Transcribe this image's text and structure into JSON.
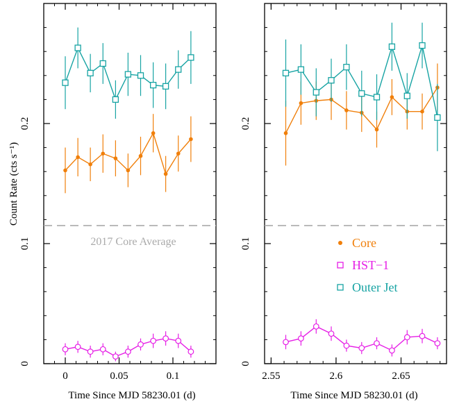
{
  "chart_data": [
    {
      "type": "line",
      "panel": "left",
      "xlabel": "Time Since MJD 58230.01 (d)",
      "ylabel": "Count Rate (cts s⁻¹)",
      "xlim": [
        -0.02,
        0.14
      ],
      "ylim": [
        0,
        0.3
      ],
      "xticks": [
        0,
        0.05,
        0.1
      ],
      "xtick_labels": [
        "0",
        "0.05",
        "0.1"
      ],
      "yticks": [
        0,
        0.1,
        0.2
      ],
      "ytick_labels": [
        "0",
        "0.1",
        "0.2"
      ],
      "reference_line": {
        "y": 0.115,
        "label": "2017 Core Average"
      },
      "series": [
        {
          "name": "Core",
          "color": "#f07f0a",
          "marker": "dot",
          "x": [
            0,
            0.0117,
            0.0233,
            0.035,
            0.0467,
            0.0583,
            0.07,
            0.0817,
            0.0933,
            0.105,
            0.1167
          ],
          "y": [
            0.161,
            0.172,
            0.166,
            0.175,
            0.171,
            0.161,
            0.173,
            0.192,
            0.158,
            0.175,
            0.187
          ],
          "err": [
            0.019,
            0.016,
            0.014,
            0.016,
            0.015,
            0.014,
            0.016,
            0.016,
            0.015,
            0.015,
            0.019
          ]
        },
        {
          "name": "HST-1",
          "color": "#e61ee6",
          "marker": "square",
          "x": [
            0,
            0.0117,
            0.0233,
            0.035,
            0.0467,
            0.0583,
            0.07,
            0.0817,
            0.0933,
            0.105,
            0.1167
          ],
          "y": [
            0.012,
            0.014,
            0.01,
            0.012,
            0.006,
            0.01,
            0.016,
            0.019,
            0.021,
            0.019,
            0.01
          ],
          "err": [
            0.005,
            0.005,
            0.005,
            0.005,
            0.004,
            0.005,
            0.005,
            0.006,
            0.006,
            0.006,
            0.005
          ]
        },
        {
          "name": "Outer Jet",
          "color": "#16a3a3",
          "marker": "square",
          "x": [
            0,
            0.0117,
            0.0233,
            0.035,
            0.0467,
            0.0583,
            0.07,
            0.0817,
            0.0933,
            0.105,
            0.1167
          ],
          "y": [
            0.234,
            0.263,
            0.242,
            0.25,
            0.22,
            0.241,
            0.24,
            0.232,
            0.231,
            0.245,
            0.255
          ],
          "err": [
            0.022,
            0.017,
            0.016,
            0.017,
            0.016,
            0.018,
            0.017,
            0.019,
            0.019,
            0.016,
            0.022
          ]
        }
      ]
    },
    {
      "type": "line",
      "panel": "right",
      "xlabel": "Time Since MJD 58230.01 (d)",
      "xlim": [
        2.545,
        2.685
      ],
      "ylim": [
        0,
        0.3
      ],
      "xticks": [
        2.55,
        2.6,
        2.65
      ],
      "xtick_labels": [
        "2.55",
        "2.6",
        "2.65"
      ],
      "yticks": [
        0,
        0.1,
        0.2
      ],
      "ytick_labels": [
        "0",
        "0.1",
        "0.2"
      ],
      "reference_line": {
        "y": 0.115
      },
      "legend": {
        "position": "center-right",
        "entries": [
          "Core",
          "HST−1",
          "Outer Jet"
        ]
      },
      "series": [
        {
          "name": "Core",
          "color": "#f07f0a",
          "marker": "dot",
          "x": [
            2.5613,
            2.573,
            2.5847,
            2.5963,
            2.608,
            2.6197,
            2.6313,
            2.643,
            2.6547,
            2.6663,
            2.678
          ],
          "y": [
            0.192,
            0.217,
            0.219,
            0.22,
            0.211,
            0.209,
            0.195,
            0.222,
            0.21,
            0.21,
            0.23
          ],
          "err": [
            0.027,
            0.018,
            0.016,
            0.017,
            0.016,
            0.016,
            0.015,
            0.015,
            0.015,
            0.015,
            0.02
          ]
        },
        {
          "name": "HST-1",
          "color": "#e61ee6",
          "marker": "square",
          "x": [
            2.5613,
            2.573,
            2.5847,
            2.5963,
            2.608,
            2.6197,
            2.6313,
            2.643,
            2.6547,
            2.6663,
            2.678
          ],
          "y": [
            0.018,
            0.021,
            0.031,
            0.025,
            0.015,
            0.013,
            0.017,
            0.011,
            0.022,
            0.023,
            0.017
          ],
          "err": [
            0.006,
            0.006,
            0.006,
            0.006,
            0.005,
            0.005,
            0.005,
            0.005,
            0.006,
            0.006,
            0.005
          ]
        },
        {
          "name": "Outer Jet",
          "color": "#16a3a3",
          "marker": "square",
          "x": [
            2.5613,
            2.573,
            2.5847,
            2.5963,
            2.608,
            2.6197,
            2.6313,
            2.643,
            2.6547,
            2.6663,
            2.678
          ],
          "y": [
            0.242,
            0.245,
            0.226,
            0.236,
            0.247,
            0.225,
            0.222,
            0.264,
            0.223,
            0.265,
            0.205
          ],
          "err": [
            0.028,
            0.021,
            0.02,
            0.018,
            0.019,
            0.019,
            0.019,
            0.02,
            0.019,
            0.019,
            0.028
          ]
        }
      ]
    }
  ]
}
